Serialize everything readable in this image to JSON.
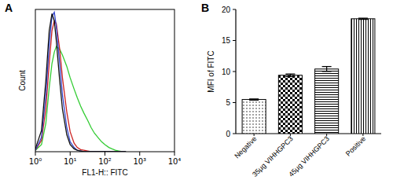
{
  "chart_data": [
    {
      "type": "line",
      "title": "A",
      "x_label": "FL1-H:: FITC",
      "y_label": "Count",
      "log": "x",
      "grid": false,
      "tick_labels": "x",
      "xlim": [
        1,
        10000
      ],
      "xticks": [
        {
          "value": 1,
          "label": "10⁰"
        },
        {
          "value": 10,
          "label": "10¹"
        },
        {
          "value": 100,
          "label": "10²"
        },
        {
          "value": 1000,
          "label": "10³"
        },
        {
          "value": 10000,
          "label": "10⁴"
        }
      ],
      "ylim": [
        0,
        100
      ],
      "x": [
        1,
        1.5,
        2,
        2.5,
        3,
        3.5,
        4,
        5,
        6,
        8,
        10,
        13,
        16,
        20,
        25,
        32,
        40,
        50,
        63,
        80,
        100,
        130,
        160,
        200,
        250,
        320,
        400
      ],
      "series": [
        {
          "color": "#33cc33",
          "values": [
            1,
            5,
            20,
            45,
            62,
            70,
            74,
            72,
            68,
            60,
            52,
            44,
            38,
            32,
            27,
            22,
            17,
            13,
            10,
            7,
            5,
            3,
            2,
            1,
            0.5,
            0,
            0
          ]
        },
        {
          "color": "#cc2222",
          "values": [
            1,
            8,
            30,
            62,
            85,
            92,
            90,
            72,
            52,
            28,
            14,
            6,
            3,
            1.5,
            1,
            0.5,
            0,
            0,
            0,
            0,
            0,
            0,
            0,
            0,
            0,
            0,
            0
          ]
        },
        {
          "color": "#3344cc",
          "values": [
            1,
            10,
            40,
            75,
            95,
            98,
            88,
            62,
            40,
            17,
            7,
            3,
            1,
            0.5,
            0,
            0,
            0,
            0,
            0,
            0,
            0,
            0,
            0,
            0,
            0,
            0,
            0
          ]
        },
        {
          "color": "#111111",
          "values": [
            2,
            15,
            50,
            85,
            97,
            92,
            78,
            50,
            30,
            12,
            5,
            2,
            1,
            0.5,
            0,
            0,
            0,
            0,
            0,
            0,
            0,
            0,
            0,
            0,
            0,
            0,
            0
          ]
        }
      ]
    },
    {
      "type": "bar",
      "title": "B",
      "y_label": "MFI of FITC",
      "grid": false,
      "color": "#000000",
      "categories": [
        "Negative",
        "35μg VIHHGPC3",
        "45μg VIHHGPC3",
        "Positive"
      ],
      "values": [
        5.5,
        9.4,
        10.4,
        18.5
      ],
      "errors": [
        0.1,
        0.2,
        0.4,
        0.1
      ],
      "ylim": [
        0,
        20
      ],
      "yticks": [
        0,
        5,
        10,
        15,
        20
      ]
    }
  ]
}
